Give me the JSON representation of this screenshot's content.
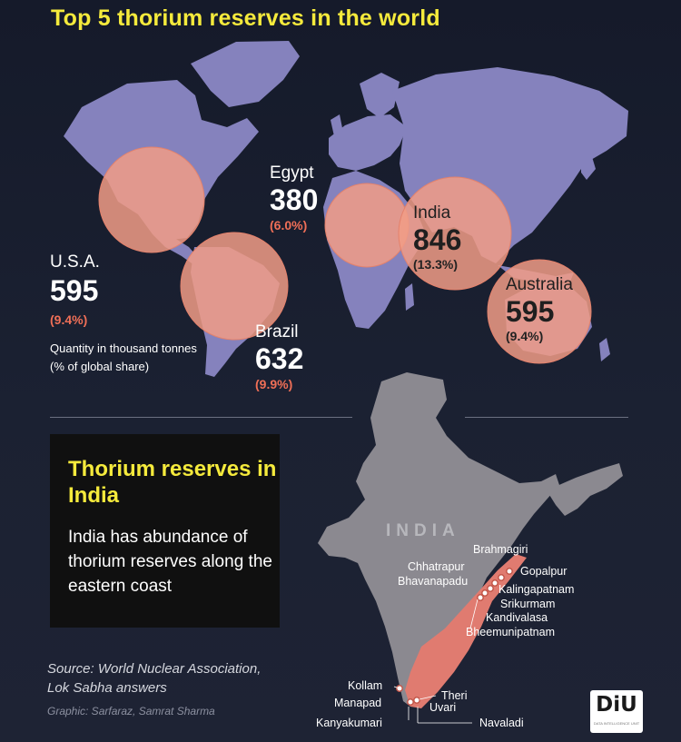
{
  "title": "Top 5 thorium reserves in the world",
  "countries": {
    "usa": {
      "name": "U.S.A.",
      "value": "595",
      "share": "(9.4%)"
    },
    "egypt": {
      "name": "Egypt",
      "value": "380",
      "share": "(6.0%)"
    },
    "brazil": {
      "name": "Brazil",
      "value": "632",
      "share": "(9.9%)"
    },
    "india": {
      "name": "India",
      "value": "846",
      "share": "(13.3%)"
    },
    "australia": {
      "name": "Australia",
      "value": "595",
      "share": "(9.4%)"
    }
  },
  "legend": {
    "quantity": "Quantity in thousand tonnes",
    "share": "(% of global share)"
  },
  "india_box": {
    "title": "Thorium reserves in India",
    "body": "India has abundance of thorium reserves along the eastern coast"
  },
  "source": {
    "line1": "Source: World Nuclear Association,",
    "line2": "Lok Sabha answers",
    "credit": "Graphic: Sarfaraz, Samrat Sharma"
  },
  "india_map": {
    "watermark": "INDIA",
    "sites": [
      "Brahmagiri",
      "Chhatrapur",
      "Gopalpur",
      "Bhavanapadu",
      "Kalingapatnam",
      "Srikurmam",
      "Kandivalasa",
      "Bheemunipatnam",
      "Kollam",
      "Theri",
      "Manapad",
      "Uvari",
      "Kanyakumari",
      "Navaladi"
    ]
  },
  "logo": {
    "text": "DiU",
    "tagline": "DATA INTELLIGENCE UNIT"
  },
  "colors": {
    "title": "#f5ea3c",
    "continents": "#8582bd",
    "bubble": "#f19c86",
    "share_red": "#ef6f57",
    "india_map": "#8b8990",
    "coast_zone": "#e07b70"
  }
}
